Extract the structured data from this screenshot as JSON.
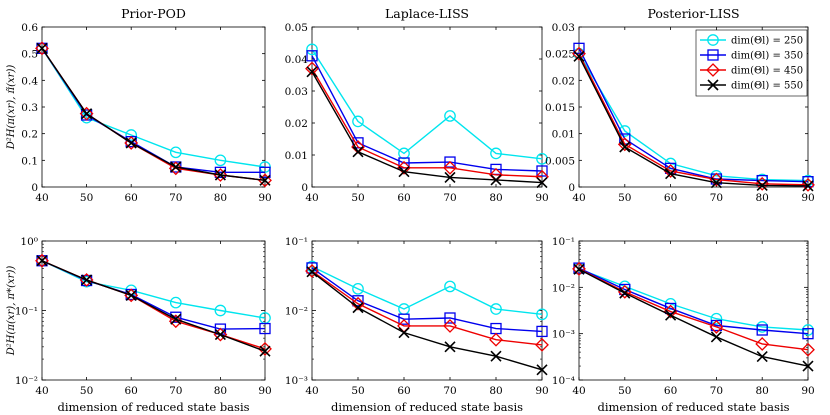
{
  "figure": {
    "xlabel": "dimension of reduced state basis",
    "ylabel_top": "D²H(π(xr), π̃(xr))",
    "ylabel_bottom": "D²H(π(xr), π*(xr))"
  },
  "chart_data": [
    {
      "id": "top-prior",
      "type": "line",
      "title": "Prior-POD",
      "yscale": "linear",
      "x": [
        40,
        50,
        60,
        70,
        80,
        90
      ],
      "xlim": [
        40,
        90
      ],
      "ylim": [
        0,
        0.6
      ],
      "yticks": [
        0,
        0.1,
        0.2,
        0.3,
        0.4,
        0.5,
        0.6
      ],
      "yticklabels": [
        "0",
        "0.1",
        "0.2",
        "0.3",
        "0.4",
        "0.5",
        "0.6"
      ],
      "series": [
        {
          "name": "dim(Θl) = 250",
          "values": [
            0.52,
            0.26,
            0.195,
            0.13,
            0.1,
            0.075
          ]
        },
        {
          "name": "dim(Θl) = 350",
          "values": [
            0.52,
            0.27,
            0.17,
            0.075,
            0.055,
            0.055
          ]
        },
        {
          "name": "dim(Θl) = 450",
          "values": [
            0.52,
            0.275,
            0.165,
            0.07,
            0.045,
            0.025
          ]
        },
        {
          "name": "dim(Θl) = 550",
          "values": [
            0.52,
            0.275,
            0.165,
            0.075,
            0.045,
            0.025
          ]
        }
      ]
    },
    {
      "id": "top-laplace",
      "type": "line",
      "title": "Laplace-LISS",
      "yscale": "linear",
      "x": [
        40,
        50,
        60,
        70,
        80,
        90
      ],
      "xlim": [
        40,
        90
      ],
      "ylim": [
        0,
        0.05
      ],
      "yticks": [
        0,
        0.01,
        0.02,
        0.03,
        0.04,
        0.05
      ],
      "yticklabels": [
        "0",
        "0.01",
        "0.02",
        "0.03",
        "0.04",
        "0.05"
      ],
      "series": [
        {
          "name": "dim(Θl) = 250",
          "values": [
            0.043,
            0.0205,
            0.0105,
            0.0222,
            0.0105,
            0.0088
          ]
        },
        {
          "name": "dim(Θl) = 350",
          "values": [
            0.041,
            0.0138,
            0.0075,
            0.0078,
            0.0055,
            0.005
          ]
        },
        {
          "name": "dim(Θl) = 450",
          "values": [
            0.037,
            0.0125,
            0.006,
            0.006,
            0.0038,
            0.0032
          ]
        },
        {
          "name": "dim(Θl) = 550",
          "values": [
            0.036,
            0.011,
            0.0048,
            0.003,
            0.0022,
            0.0014
          ]
        }
      ]
    },
    {
      "id": "top-posterior",
      "type": "line",
      "title": "Posterior-LISS",
      "yscale": "linear",
      "x": [
        40,
        50,
        60,
        70,
        80,
        90
      ],
      "xlim": [
        40,
        90
      ],
      "ylim": [
        0,
        0.03
      ],
      "yticks": [
        0,
        0.005,
        0.01,
        0.015,
        0.02,
        0.025,
        0.03
      ],
      "yticklabels": [
        "0",
        "0.005",
        "0.01",
        "0.015",
        "0.02",
        "0.025",
        "0.03"
      ],
      "series": [
        {
          "name": "dim(Θl) = 250",
          "values": [
            0.025,
            0.0105,
            0.0044,
            0.0021,
            0.0014,
            0.0012
          ]
        },
        {
          "name": "dim(Θl) = 350",
          "values": [
            0.026,
            0.009,
            0.0035,
            0.0015,
            0.0012,
            0.001
          ]
        },
        {
          "name": "dim(Θl) = 450",
          "values": [
            0.025,
            0.008,
            0.003,
            0.0014,
            0.0006,
            0.0004
          ]
        },
        {
          "name": "dim(Θl) = 550",
          "values": [
            0.0245,
            0.0075,
            0.0025,
            0.0008,
            0.0003,
            0.0002
          ]
        }
      ]
    },
    {
      "id": "bottom-prior",
      "type": "line",
      "title": "",
      "yscale": "log",
      "x": [
        40,
        50,
        60,
        70,
        80,
        90
      ],
      "xlim": [
        40,
        90
      ],
      "ylim": [
        0.01,
        1
      ],
      "ydecades": [
        -2,
        -1,
        0
      ],
      "yticklabels": [
        "10⁻²",
        "10⁻¹",
        "10⁰"
      ],
      "series": [
        {
          "name": "dim(Θl) = 250",
          "values": [
            0.52,
            0.26,
            0.195,
            0.13,
            0.1,
            0.078
          ]
        },
        {
          "name": "dim(Θl) = 350",
          "values": [
            0.52,
            0.27,
            0.17,
            0.08,
            0.054,
            0.055
          ]
        },
        {
          "name": "dim(Θl) = 450",
          "values": [
            0.52,
            0.275,
            0.165,
            0.07,
            0.045,
            0.028
          ]
        },
        {
          "name": "dim(Θl) = 550",
          "values": [
            0.52,
            0.275,
            0.165,
            0.075,
            0.045,
            0.026
          ]
        }
      ]
    },
    {
      "id": "bottom-laplace",
      "type": "line",
      "title": "",
      "yscale": "log",
      "x": [
        40,
        50,
        60,
        70,
        80,
        90
      ],
      "xlim": [
        40,
        90
      ],
      "ylim": [
        0.001,
        0.1
      ],
      "ydecades": [
        -3,
        -2,
        -1
      ],
      "yticklabels": [
        "10⁻³",
        "10⁻²",
        "10⁻¹"
      ],
      "series": [
        {
          "name": "dim(Θl) = 250",
          "values": [
            0.043,
            0.0205,
            0.0105,
            0.0222,
            0.0105,
            0.0088
          ]
        },
        {
          "name": "dim(Θl) = 350",
          "values": [
            0.041,
            0.0138,
            0.0075,
            0.0078,
            0.0055,
            0.005
          ]
        },
        {
          "name": "dim(Θl) = 450",
          "values": [
            0.037,
            0.0125,
            0.006,
            0.006,
            0.0038,
            0.0032
          ]
        },
        {
          "name": "dim(Θl) = 550",
          "values": [
            0.036,
            0.011,
            0.0048,
            0.003,
            0.0022,
            0.0014
          ]
        }
      ]
    },
    {
      "id": "bottom-posterior",
      "type": "line",
      "title": "",
      "yscale": "log",
      "x": [
        40,
        50,
        60,
        70,
        80,
        90
      ],
      "xlim": [
        40,
        90
      ],
      "ylim": [
        0.0001,
        0.1
      ],
      "ydecades": [
        -4,
        -3,
        -2,
        -1
      ],
      "yticklabels": [
        "10⁻⁴",
        "10⁻³",
        "10⁻²",
        "10⁻¹"
      ],
      "series": [
        {
          "name": "dim(Θl) = 250",
          "values": [
            0.025,
            0.0105,
            0.0044,
            0.0021,
            0.0014,
            0.0012
          ]
        },
        {
          "name": "dim(Θl) = 350",
          "values": [
            0.026,
            0.009,
            0.0035,
            0.0015,
            0.0012,
            0.001
          ]
        },
        {
          "name": "dim(Θl) = 450",
          "values": [
            0.025,
            0.008,
            0.003,
            0.0014,
            0.0006,
            0.00045
          ]
        },
        {
          "name": "dim(Θl) = 550",
          "values": [
            0.0245,
            0.0075,
            0.0025,
            0.00085,
            0.00032,
            0.0002
          ]
        }
      ]
    }
  ],
  "legend": {
    "placement": "top-right of Posterior-LISS panel",
    "entries": [
      {
        "label": "dim(Θl) = 250",
        "color": "#00e5ee",
        "marker": "circle"
      },
      {
        "label": "dim(Θl) = 350",
        "color": "#0000ee",
        "marker": "square"
      },
      {
        "label": "dim(Θl) = 450",
        "color": "#ee0000",
        "marker": "diamond"
      },
      {
        "label": "dim(Θl) = 550",
        "color": "#000000",
        "marker": "x"
      }
    ]
  }
}
